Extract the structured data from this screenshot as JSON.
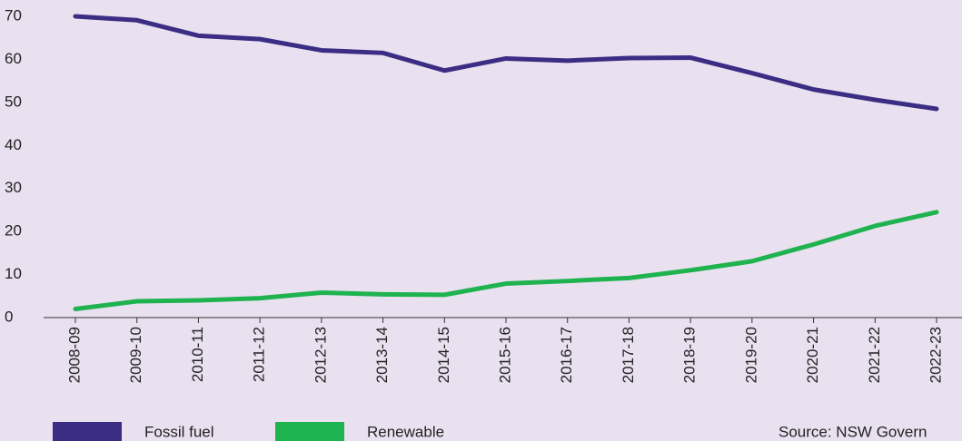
{
  "chart_data": {
    "type": "line",
    "categories": [
      "2008-09",
      "2009-10",
      "2010-11",
      "2011-12",
      "2012-13",
      "2013-14",
      "2014-15",
      "2015-16",
      "2016-17",
      "2017-18",
      "2018-19",
      "2019-20",
      "2020-21",
      "2021-22",
      "2022-23"
    ],
    "series": [
      {
        "name": "Fossil fuel",
        "color": "#3b2d84",
        "values": [
          70,
          69.1,
          65.5,
          64.7,
          62.1,
          61.5,
          57.4,
          60.2,
          59.7,
          60.3,
          60.4,
          56.8,
          53,
          50.6,
          48.5
        ]
      },
      {
        "name": "Renewable",
        "color": "#1fb350",
        "values": [
          2,
          3.8,
          4,
          4.5,
          5.8,
          5.4,
          5.3,
          7.9,
          8.5,
          9.2,
          11,
          13.1,
          17,
          21.3,
          24.5
        ]
      }
    ],
    "ylim": [
      0,
      70
    ],
    "yticks": [
      0,
      10,
      20,
      30,
      40,
      50,
      60,
      70
    ],
    "source": "Source: NSW Govern"
  }
}
